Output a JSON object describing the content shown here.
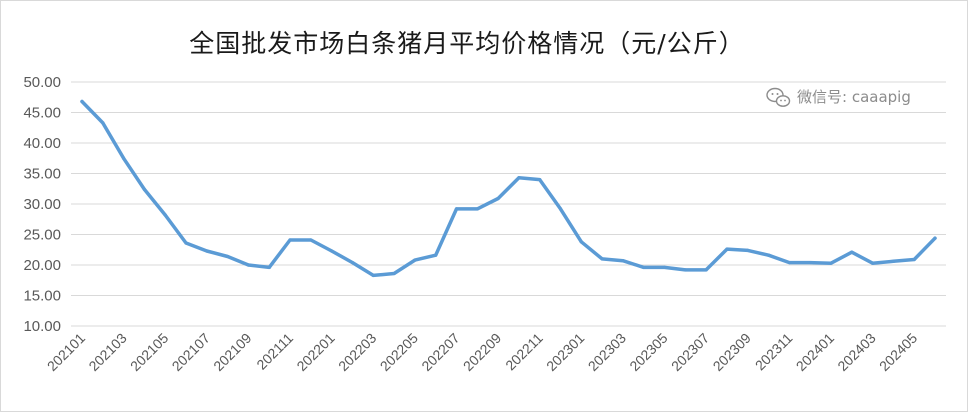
{
  "watermark": {
    "icon": "wechat-icon",
    "text": "微信号: caaapig"
  },
  "chart_data": {
    "type": "line",
    "title": "全国批发市场白条猪月平均价格情况（元/公斤）",
    "xlabel": "",
    "ylabel": "",
    "ylim": [
      10,
      50
    ],
    "y_ticks": [
      "10.00",
      "15.00",
      "20.00",
      "25.00",
      "30.00",
      "35.00",
      "40.00",
      "45.00",
      "50.00"
    ],
    "grid": true,
    "legend": "none",
    "line_color": "#5b9bd5",
    "categories": [
      "202101",
      "202102",
      "202103",
      "202104",
      "202105",
      "202106",
      "202107",
      "202108",
      "202109",
      "202110",
      "202111",
      "202112",
      "202201",
      "202202",
      "202203",
      "202204",
      "202205",
      "202206",
      "202207",
      "202208",
      "202209",
      "202210",
      "202211",
      "202212",
      "202301",
      "202302",
      "202303",
      "202304",
      "202305",
      "202306",
      "202307",
      "202308",
      "202309",
      "202310",
      "202311",
      "202312",
      "202401",
      "202402",
      "202403",
      "202404",
      "202405",
      "202406"
    ],
    "x_tick_labels": [
      "202101",
      "202103",
      "202105",
      "202107",
      "202109",
      "202111",
      "202201",
      "202203",
      "202205",
      "202207",
      "202209",
      "202211",
      "202301",
      "202303",
      "202305",
      "202307",
      "202309",
      "202311",
      "202401",
      "202403",
      "202405"
    ],
    "values": [
      46.8,
      43.3,
      37.5,
      32.4,
      28.2,
      23.6,
      22.3,
      21.4,
      20.0,
      19.6,
      24.1,
      24.1,
      22.3,
      20.4,
      18.3,
      18.6,
      20.8,
      21.6,
      29.2,
      29.2,
      30.9,
      34.3,
      34.0,
      29.2,
      23.8,
      21.0,
      20.7,
      19.6,
      19.6,
      19.2,
      19.2,
      22.6,
      22.4,
      21.6,
      20.4,
      20.4,
      20.3,
      22.1,
      20.3,
      20.6,
      20.9,
      24.4
    ]
  }
}
